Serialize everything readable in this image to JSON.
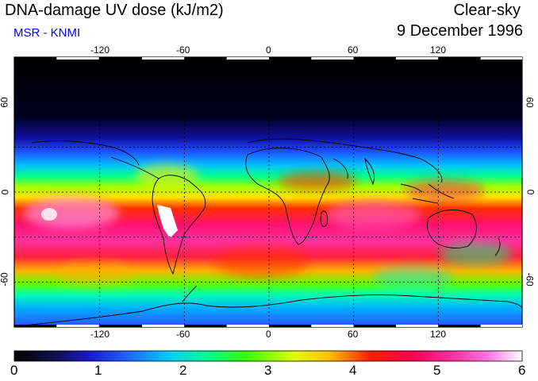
{
  "header": {
    "title": "DNA-damage UV dose (kJ/m2)",
    "subtitle": "MSR - KNMI",
    "condition": "Clear-sky",
    "date": "9 December 1996"
  },
  "colors": {
    "subtitle": "#0000ee",
    "frame": "#000000",
    "ramp": [
      "#000000",
      "#0a0a3c",
      "#1a1aa0",
      "#2040ff",
      "#00b0ff",
      "#00e0ff",
      "#00ff80",
      "#40ff00",
      "#c0ff00",
      "#ffff00",
      "#ffa000",
      "#ff2000",
      "#ff0050",
      "#ff2090",
      "#ff60e0",
      "#ffb0f0",
      "#ffffff"
    ]
  },
  "axes": {
    "lon_ticks": [
      "-120",
      "-60",
      "0",
      "60",
      "120"
    ],
    "lat_ticks_left": [
      "60",
      "0",
      "-60"
    ],
    "lat_ticks_right": [
      "60",
      "0",
      "-60"
    ]
  },
  "colorbar": {
    "min": 0,
    "max": 6,
    "labels": [
      "0",
      "1",
      "2",
      "3",
      "4",
      "5",
      "6"
    ]
  }
}
